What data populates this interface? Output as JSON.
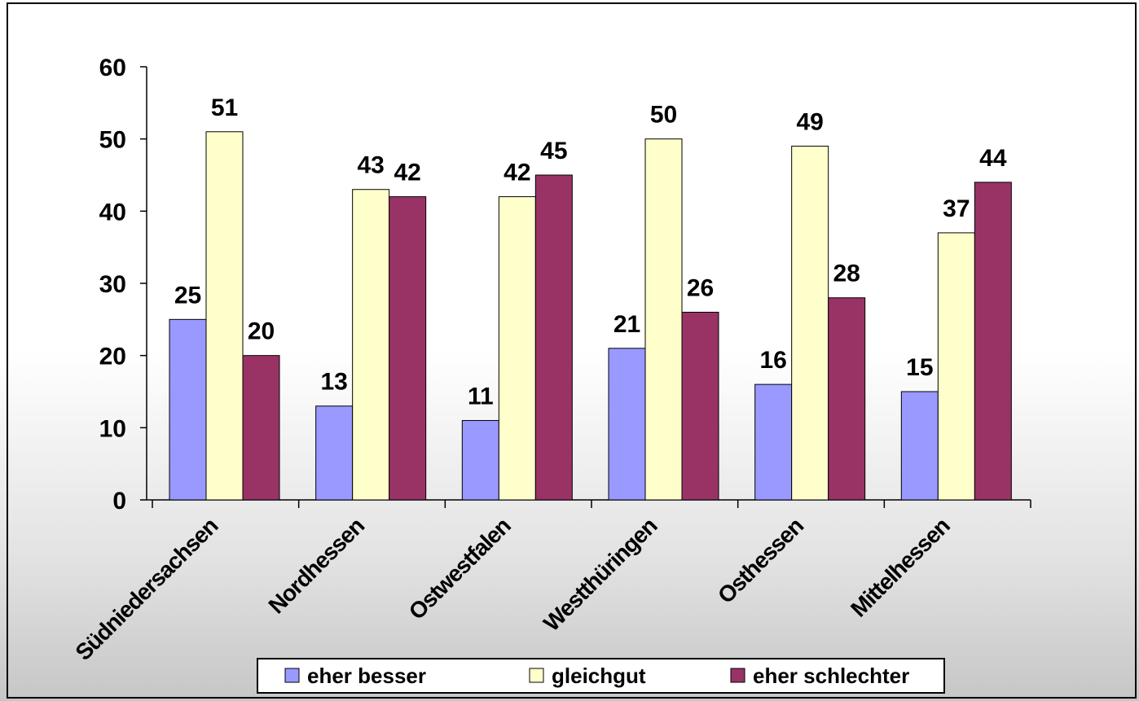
{
  "chart_data": {
    "type": "bar",
    "title": "",
    "xlabel": "",
    "ylabel": "",
    "categories": [
      "Südniedersachsen",
      "Nordhessen",
      "Ostwestfalen",
      "Westthüringen",
      "Osthessen",
      "Mittelhessen"
    ],
    "series": [
      {
        "name": "eher besser",
        "color": "#9999ff",
        "values": [
          25,
          13,
          11,
          21,
          16,
          15
        ]
      },
      {
        "name": "gleichgut",
        "color": "#ffffcc",
        "values": [
          51,
          43,
          42,
          50,
          49,
          37
        ]
      },
      {
        "name": "eher schlechter",
        "color": "#993366",
        "values": [
          20,
          42,
          45,
          26,
          28,
          44
        ]
      }
    ],
    "ylim": [
      0,
      60
    ],
    "yticks": [
      0,
      10,
      20,
      30,
      40,
      50,
      60
    ],
    "grid": false,
    "legend": "bottom"
  }
}
